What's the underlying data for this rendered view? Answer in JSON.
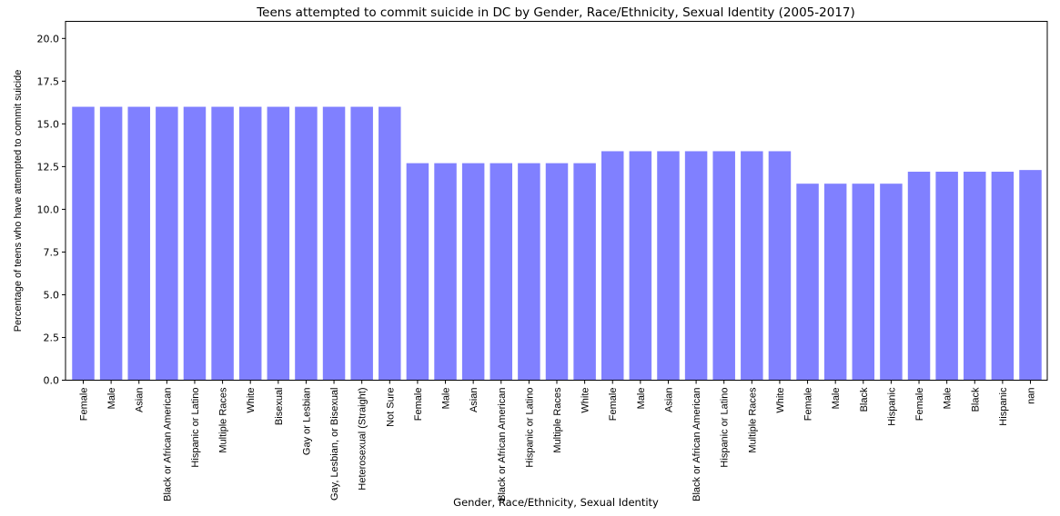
{
  "chart_data": {
    "type": "bar",
    "title": "Teens attempted to commit suicide in DC by Gender, Race/Ethnicity, Sexual Identity (2005-2017)",
    "xlabel": "Gender, Race/Ethnicity, Sexual Identity",
    "ylabel": "Percentage of teens who have attempted to commit suicide",
    "ylim": [
      0,
      21
    ],
    "yticks": [
      "0.0",
      "2.5",
      "5.0",
      "7.5",
      "10.0",
      "12.5",
      "15.0",
      "17.5",
      "20.0"
    ],
    "grid": false,
    "bar_color": "#8080ff",
    "categories": [
      "Female",
      "Male",
      "Asian",
      "Black or African American",
      "Hispanic or Latino",
      "Multiple Races",
      "White",
      "Bisexual",
      "Gay or Lesbian",
      "Gay, Lesbian, or Bisexual",
      "Heterosexual (Straight)",
      "Not Sure",
      "Female",
      "Male",
      "Asian",
      "Black or African American",
      "Hispanic or Latino",
      "Multiple Races",
      "White",
      "Female",
      "Male",
      "Asian",
      "Black or African American",
      "Hispanic or Latino",
      "Multiple Races",
      "White",
      "Female",
      "Male",
      "Black",
      "Hispanic",
      "Female",
      "Male",
      "Black",
      "Hispanic",
      "nan"
    ],
    "values": [
      16.0,
      16.0,
      16.0,
      16.0,
      16.0,
      16.0,
      16.0,
      16.0,
      16.0,
      16.0,
      16.0,
      16.0,
      12.7,
      12.7,
      12.7,
      12.7,
      12.7,
      12.7,
      12.7,
      13.4,
      13.4,
      13.4,
      13.4,
      13.4,
      13.4,
      13.4,
      11.5,
      11.5,
      11.5,
      11.5,
      12.2,
      12.2,
      12.2,
      12.2,
      12.3
    ]
  }
}
